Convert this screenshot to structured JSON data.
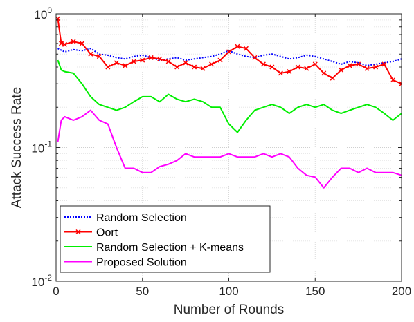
{
  "chart_data": {
    "type": "line",
    "title": "",
    "xlabel": "Number of Rounds",
    "ylabel": "Attack Success Rate",
    "xlim": [
      0,
      200
    ],
    "ylim": [
      0.01,
      1
    ],
    "yscale": "log",
    "grid": true,
    "legend_position": "bottom-left",
    "x_ticks": [
      {
        "value": 0,
        "label": "0"
      },
      {
        "value": 50,
        "label": "50"
      },
      {
        "value": 100,
        "label": "100"
      },
      {
        "value": 150,
        "label": "150"
      },
      {
        "value": 200,
        "label": "200"
      }
    ],
    "y_ticks": [
      {
        "value": 0.01,
        "base": "10",
        "exp": "-2"
      },
      {
        "value": 0.1,
        "base": "10",
        "exp": "-1"
      },
      {
        "value": 1,
        "base": "10",
        "exp": "0"
      }
    ],
    "series": [
      {
        "name": "Random Selection",
        "color": "#0000ff",
        "style": "dotted",
        "x": [
          1,
          5,
          10,
          15,
          20,
          25,
          30,
          35,
          40,
          45,
          50,
          55,
          60,
          65,
          70,
          75,
          80,
          85,
          90,
          95,
          100,
          105,
          110,
          115,
          120,
          125,
          130,
          135,
          140,
          145,
          150,
          155,
          160,
          165,
          170,
          175,
          180,
          185,
          190,
          195,
          200
        ],
        "y": [
          0.55,
          0.52,
          0.54,
          0.53,
          0.55,
          0.5,
          0.49,
          0.47,
          0.46,
          0.48,
          0.49,
          0.47,
          0.45,
          0.46,
          0.47,
          0.45,
          0.46,
          0.47,
          0.48,
          0.5,
          0.53,
          0.5,
          0.48,
          0.47,
          0.49,
          0.5,
          0.48,
          0.46,
          0.47,
          0.49,
          0.48,
          0.46,
          0.44,
          0.42,
          0.44,
          0.43,
          0.41,
          0.42,
          0.43,
          0.44,
          0.46
        ]
      },
      {
        "name": "Oort",
        "color": "#ff0000",
        "style": "solid-marker",
        "x": [
          1,
          3,
          5,
          10,
          15,
          20,
          25,
          30,
          35,
          40,
          45,
          50,
          55,
          60,
          65,
          70,
          75,
          80,
          85,
          90,
          95,
          100,
          105,
          110,
          115,
          120,
          125,
          130,
          135,
          140,
          145,
          150,
          155,
          160,
          165,
          170,
          175,
          180,
          185,
          190,
          195,
          200
        ],
        "y": [
          0.92,
          0.6,
          0.59,
          0.62,
          0.6,
          0.5,
          0.48,
          0.4,
          0.43,
          0.41,
          0.44,
          0.45,
          0.47,
          0.46,
          0.44,
          0.4,
          0.43,
          0.4,
          0.39,
          0.42,
          0.45,
          0.52,
          0.57,
          0.55,
          0.47,
          0.42,
          0.4,
          0.36,
          0.37,
          0.4,
          0.39,
          0.42,
          0.36,
          0.33,
          0.38,
          0.41,
          0.42,
          0.39,
          0.4,
          0.42,
          0.32,
          0.3
        ]
      },
      {
        "name": "Random Selection + K-means",
        "color": "#00ee00",
        "style": "solid",
        "x": [
          1,
          3,
          5,
          10,
          15,
          20,
          25,
          30,
          35,
          40,
          45,
          50,
          55,
          60,
          65,
          70,
          75,
          80,
          85,
          90,
          95,
          100,
          105,
          110,
          115,
          120,
          125,
          130,
          135,
          140,
          145,
          150,
          155,
          160,
          165,
          170,
          175,
          180,
          185,
          190,
          195,
          200
        ],
        "y": [
          0.45,
          0.38,
          0.37,
          0.36,
          0.3,
          0.24,
          0.21,
          0.2,
          0.19,
          0.2,
          0.22,
          0.24,
          0.24,
          0.22,
          0.25,
          0.23,
          0.22,
          0.23,
          0.22,
          0.2,
          0.2,
          0.15,
          0.13,
          0.16,
          0.19,
          0.2,
          0.21,
          0.2,
          0.18,
          0.2,
          0.21,
          0.2,
          0.21,
          0.19,
          0.18,
          0.19,
          0.2,
          0.21,
          0.2,
          0.18,
          0.16,
          0.18
        ]
      },
      {
        "name": "Proposed Solution",
        "color": "#ff00ff",
        "style": "solid",
        "x": [
          1,
          3,
          5,
          10,
          15,
          20,
          25,
          30,
          35,
          40,
          45,
          50,
          55,
          60,
          65,
          70,
          75,
          80,
          85,
          90,
          95,
          100,
          105,
          110,
          115,
          120,
          125,
          130,
          135,
          140,
          145,
          150,
          155,
          160,
          165,
          170,
          175,
          180,
          185,
          190,
          195,
          200
        ],
        "y": [
          0.11,
          0.16,
          0.17,
          0.16,
          0.17,
          0.19,
          0.16,
          0.15,
          0.1,
          0.07,
          0.07,
          0.065,
          0.065,
          0.072,
          0.075,
          0.08,
          0.09,
          0.085,
          0.085,
          0.085,
          0.085,
          0.09,
          0.085,
          0.085,
          0.085,
          0.09,
          0.085,
          0.09,
          0.085,
          0.07,
          0.062,
          0.06,
          0.05,
          0.06,
          0.07,
          0.07,
          0.065,
          0.07,
          0.065,
          0.065,
          0.065,
          0.062
        ]
      }
    ]
  }
}
